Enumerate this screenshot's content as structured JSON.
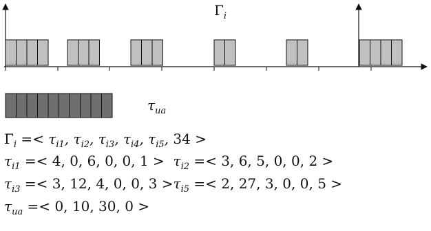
{
  "colors": {
    "light_block": "#c0c0c0",
    "dark_block": "#6f6f6f",
    "stroke": "#111111"
  },
  "timeline": {
    "top_label": {
      "base": "Γ",
      "sub": "i"
    },
    "axis_arrow_count": 2,
    "tick_count": 8,
    "groups": [
      {
        "blocks": 4
      },
      {
        "blocks": 3
      },
      {
        "blocks": 3
      },
      {
        "blocks": 2
      },
      {
        "blocks": 2
      },
      {
        "blocks": 4
      }
    ]
  },
  "legend": {
    "blocks": 10,
    "label": {
      "base": "τ",
      "sub": "ua"
    }
  },
  "formulas": [
    "Γ_i =< τ_i1, τ_i2, τ_i3, τ_i4, τ_i5, 34 >",
    "τ_i1 =< 4, 0, 6, 0, 0, 1 >   τ_i2 =< 3, 6, 5, 0, 0, 2 >",
    "τ_i3 =< 3, 12, 4, 0, 0, 3 >τ_i5 =< 2, 27, 3, 0, 0, 5 >",
    "τ_ua =< 0, 10, 30, 0 >"
  ]
}
